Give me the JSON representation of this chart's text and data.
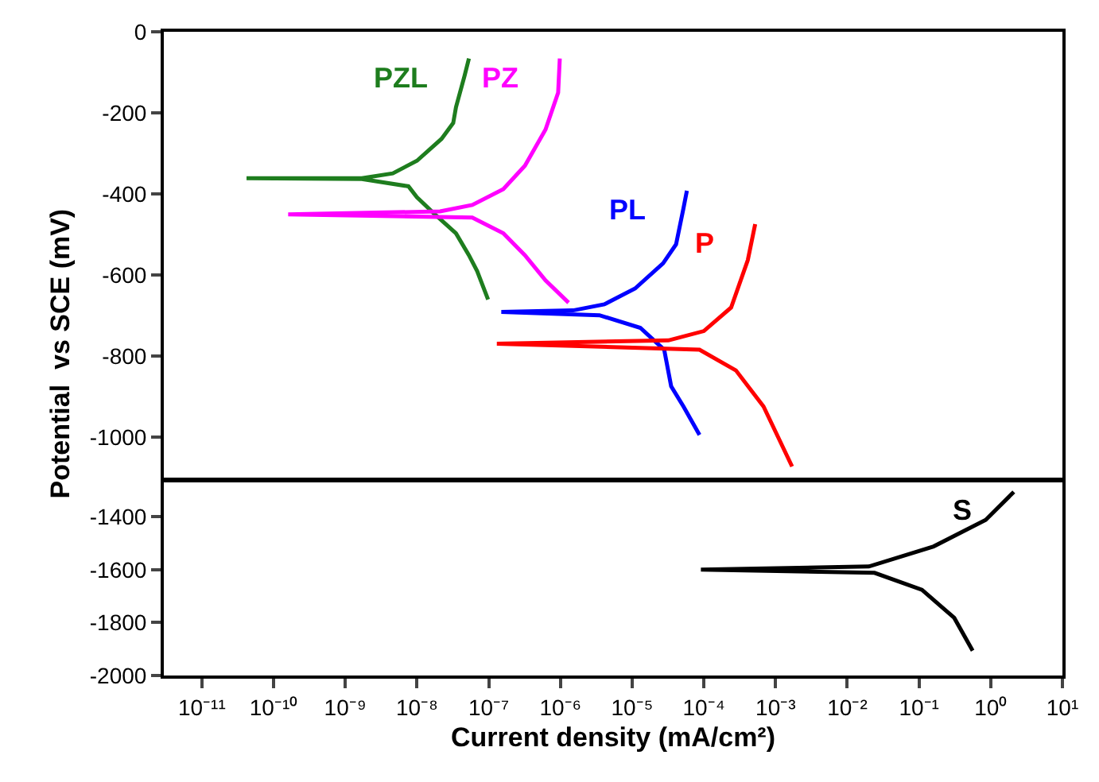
{
  "chart_data": [
    {
      "type": "line",
      "ylabel": "Potential  vs SCE (mV)",
      "log": "x",
      "legend": false,
      "tick_labels": "y",
      "marker": "none",
      "line_style": "solid",
      "xlim": [
        2.95e-12,
        10
      ],
      "ylim": [
        -1100,
        0
      ],
      "yticks": [
        0,
        -200,
        -400,
        -600,
        -800,
        -1000
      ],
      "series": [
        {
          "name": "PZL",
          "color": "#1e7d1e",
          "x": [
            5.3e-08,
            4.6e-08,
            3.5e-08,
            3.2e-08,
            2.2e-08,
            1e-08,
            4.6e-09,
            1.7e-09,
            4.2e-11,
            1.7e-09,
            7.6e-09,
            1e-08,
            1.7e-08,
            3.5e-08,
            5.3e-08,
            6.9e-08,
            9.8e-08
          ],
          "values": [
            -66,
            -109,
            -186,
            -225,
            -264,
            -318,
            -349,
            -361,
            -361,
            -363,
            -381,
            -408,
            -447,
            -497,
            -551,
            -590,
            -660
          ]
        },
        {
          "name": "PZ",
          "color": "#ff00ff",
          "x": [
            9.8e-07,
            9.3e-07,
            6.2e-07,
            3.2e-07,
            1.6e-07,
            5.9e-08,
            2.1e-08,
            1.6e-10,
            5.9e-08,
            1.6e-07,
            3.2e-07,
            6.2e-07,
            1.3e-06
          ],
          "values": [
            -66,
            -150,
            -241,
            -330,
            -388,
            -427,
            -443,
            -450,
            -458,
            -497,
            -551,
            -613,
            -668
          ]
        },
        {
          "name": "PL",
          "color": "#0000ff",
          "x": [
            5.8e-05,
            5.2e-05,
            4.1e-05,
            2.7e-05,
            1.1e-05,
            4.1e-06,
            1.5e-06,
            1.5e-07,
            3.5e-06,
            1.3e-05,
            2.8e-05,
            3.5e-05,
            5.2e-05,
            8.7e-05
          ],
          "values": [
            -392,
            -435,
            -524,
            -571,
            -633,
            -672,
            -687,
            -691,
            -699,
            -730,
            -784,
            -874,
            -924,
            -994
          ]
        },
        {
          "name": "P",
          "color": "#ff0000",
          "x": [
            0.00052,
            0.00041,
            0.00024,
            0.0001,
            3.2e-05,
            1.3e-07,
            8.7e-05,
            0.00028,
            0.00068,
            0.0017
          ],
          "values": [
            -474,
            -563,
            -680,
            -738,
            -761,
            -769,
            -784,
            -835,
            -924,
            -1072
          ]
        }
      ]
    },
    {
      "type": "line",
      "xlabel": "Current density (mA/cm²)",
      "log": "x",
      "legend": false,
      "marker": "none",
      "line_style": "solid",
      "xlim": [
        2.95e-12,
        10
      ],
      "xticks": [
        {
          "value": 1e-11,
          "label": "10⁻¹¹"
        },
        {
          "value": 1e-10,
          "label": "10⁻¹⁰"
        },
        {
          "value": 1e-09,
          "label": "10⁻⁹"
        },
        {
          "value": 1e-08,
          "label": "10⁻⁸"
        },
        {
          "value": 1e-07,
          "label": "10⁻⁷"
        },
        {
          "value": 1e-06,
          "label": "10⁻⁶"
        },
        {
          "value": 1e-05,
          "label": "10⁻⁵"
        },
        {
          "value": 0.0001,
          "label": "10⁻⁴"
        },
        {
          "value": 0.001,
          "label": "10⁻³"
        },
        {
          "value": 0.01,
          "label": "10⁻²"
        },
        {
          "value": 0.1,
          "label": "10⁻¹"
        },
        {
          "value": 1,
          "label": "10⁰"
        },
        {
          "value": 10,
          "label": "10¹"
        }
      ],
      "ylim": [
        -2000,
        -1270
      ],
      "yticks": [
        -1400,
        -1600,
        -1800,
        -2000
      ],
      "series": [
        {
          "name": "S",
          "color": "#000000",
          "x": [
            2.1,
            0.85,
            0.16,
            0.02,
            9.1e-05,
            0.024,
            0.11,
            0.31,
            0.56
          ],
          "values": [
            -1306,
            -1412,
            -1512,
            -1588,
            -1600,
            -1612,
            -1676,
            -1782,
            -1906
          ]
        }
      ]
    }
  ]
}
